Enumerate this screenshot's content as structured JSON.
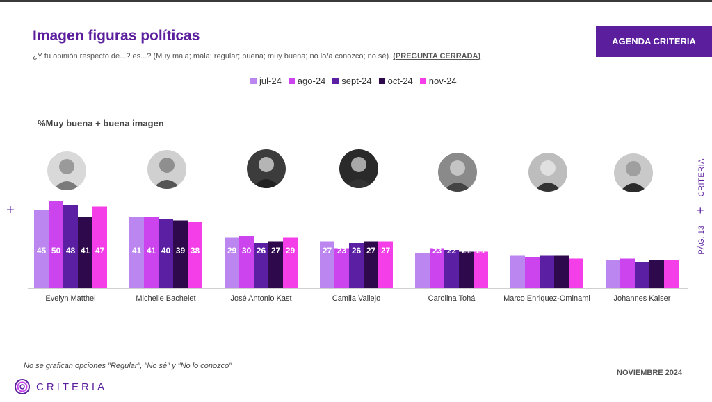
{
  "header": {
    "title": "Imagen figuras políticas",
    "subtitle": "¿Y tu opinión respecto de...? es...? (Muy mala; mala; regular; buena; muy buena; no lo/a conozco; no sé)",
    "subtitle_tag": "(PREGUNTA CERRADA)",
    "badge": "AGENDA CRITERIA"
  },
  "metric_label": "%Muy buena + buena imagen",
  "side": {
    "brand": "CRITERIA",
    "page": "PÁG. 13",
    "plus": "+"
  },
  "footer": {
    "note": "No se grafican opciones \"Regular\", \"No sé\" y \"No lo conozco\"",
    "date": "NOVIEMBRE 2024",
    "logo_text": "CRITERIA"
  },
  "colors": {
    "primary": "#5b1f9e",
    "series": [
      "#bb86f0",
      "#cc44ee",
      "#5a1fa3",
      "#2e0a4c",
      "#f43ee8"
    ]
  },
  "chart_data": {
    "type": "bar",
    "categories": [
      "Evelyn Matthei",
      "Michelle Bachelet",
      "José Antonio Kast",
      "Camila Vallejo",
      "Carolina Tohá",
      "Marco Enriquez-Ominami",
      "Johannes Kaiser"
    ],
    "series": [
      {
        "name": "jul-24",
        "values": [
          45,
          41,
          29,
          27,
          20,
          19,
          16
        ]
      },
      {
        "name": "ago-24",
        "values": [
          50,
          41,
          30,
          23,
          23,
          18,
          17
        ]
      },
      {
        "name": "sept-24",
        "values": [
          48,
          40,
          26,
          26,
          22,
          19,
          15
        ]
      },
      {
        "name": "oct-24",
        "values": [
          41,
          39,
          27,
          27,
          21,
          19,
          16
        ]
      },
      {
        "name": "nov-24",
        "values": [
          47,
          38,
          29,
          27,
          21,
          17,
          16
        ]
      }
    ],
    "ylim": [
      0,
      50
    ],
    "legend_position": "top"
  }
}
